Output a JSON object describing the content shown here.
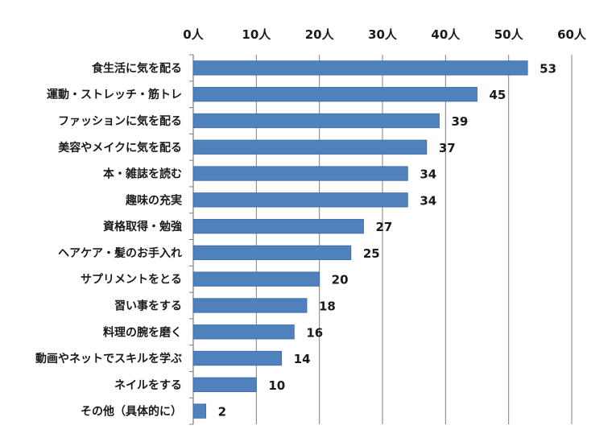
{
  "chart_data": {
    "type": "bar",
    "orientation": "horizontal",
    "categories": [
      "食生活に気を配る",
      "運動・ストレッチ・筋トレ",
      "ファッションに気を配る",
      "美容やメイクに気を配る",
      "本・雑誌を読む",
      "趣味の充実",
      "資格取得・勉強",
      "ヘアケア・髪のお手入れ",
      "サプリメントをとる",
      "習い事をする",
      "料理の腕を磨く",
      "動画やネットでスキルを学ぶ",
      "ネイルをする",
      "その他（具体的に）"
    ],
    "values": [
      53,
      45,
      39,
      37,
      34,
      34,
      27,
      25,
      20,
      18,
      16,
      14,
      10,
      2
    ],
    "data_labels": [
      "53",
      "45",
      "39",
      "37",
      "34",
      "34",
      "27",
      "25",
      "20",
      "18",
      "16",
      "14",
      "10",
      "2"
    ],
    "x_ticks": [
      0,
      10,
      20,
      30,
      40,
      50,
      60
    ],
    "x_tick_labels": [
      "0人",
      "10人",
      "20人",
      "30人",
      "40人",
      "50人",
      "60人"
    ],
    "xlim": [
      0,
      60
    ],
    "axis_position": "top",
    "grid": true,
    "legend": "none",
    "title": "",
    "xlabel": "",
    "ylabel": "",
    "colors": {
      "bar": "#4f81bd",
      "bar_edge": "#3a6aa8",
      "grid": "#7f7f7f",
      "text": "#1a1a1a"
    }
  }
}
